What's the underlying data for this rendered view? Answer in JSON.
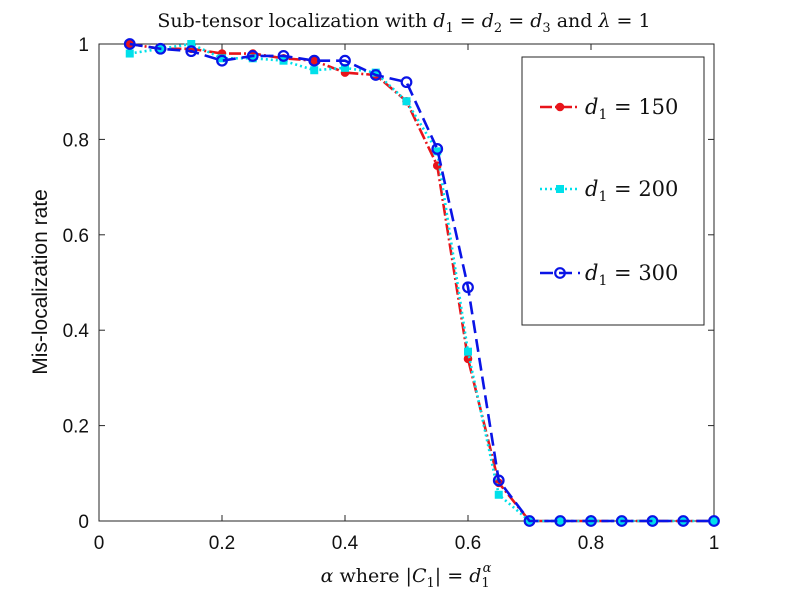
{
  "chart_data": {
    "type": "line",
    "title": "Sub-tensor localization with d1 = d2 = d3 and λ = 1",
    "title_parts": {
      "prefix": "Sub-tensor localization with ",
      "d": "d",
      "s1": "1",
      "s2": "2",
      "s3": "3",
      "eq": " = ",
      "and": " and ",
      "lambda": "λ",
      "one": " = 1"
    },
    "xlabel": "α where |C1| = d1^α",
    "xlabel_parts": {
      "alpha": "α",
      "where": " where |",
      "C": "C",
      "sub": "1",
      "eq": "| = ",
      "d": "d",
      "dsub": "1",
      "dsup": "α"
    },
    "ylabel": "Mis-localization rate",
    "xlim": [
      0,
      1
    ],
    "ylim": [
      0,
      1
    ],
    "xticks": [
      "0",
      "0.2",
      "0.4",
      "0.6",
      "0.8",
      "1"
    ],
    "xtick_values": [
      0,
      0.2,
      0.4,
      0.6,
      0.8,
      1
    ],
    "yticks": [
      "0",
      "0.2",
      "0.4",
      "0.6",
      "0.8",
      "1"
    ],
    "ytick_values": [
      0,
      0.2,
      0.4,
      0.6,
      0.8,
      1
    ],
    "legend_position": "top-right",
    "x": [
      0.05,
      0.1,
      0.15,
      0.2,
      0.25,
      0.3,
      0.35,
      0.4,
      0.45,
      0.5,
      0.55,
      0.6,
      0.65,
      0.7,
      0.75,
      0.8,
      0.85,
      0.9,
      0.95,
      1.0
    ],
    "series": [
      {
        "name": "d1 = 150",
        "label_var": "d",
        "label_sub": "1",
        "label_eq": " = 150",
        "color": "#e8141a",
        "dash": "12 3 2 3",
        "marker": "dot",
        "values": [
          1.0,
          0.99,
          0.99,
          0.98,
          0.98,
          0.97,
          0.965,
          0.94,
          0.935,
          0.88,
          0.745,
          0.34,
          0.08,
          0.0,
          0.0,
          0.0,
          0.0,
          0.0,
          0.0,
          0.0
        ]
      },
      {
        "name": "d1 = 200",
        "label_var": "d",
        "label_sub": "1",
        "label_eq": " = 200",
        "color": "#00e0ea",
        "dash": "2 3",
        "marker": "square",
        "values": [
          0.98,
          0.99,
          1.0,
          0.97,
          0.97,
          0.965,
          0.945,
          0.95,
          0.94,
          0.88,
          0.775,
          0.355,
          0.055,
          0.0,
          0.0,
          0.0,
          0.0,
          0.0,
          0.0,
          0.0
        ]
      },
      {
        "name": "d1 = 300",
        "label_var": "d",
        "label_sub": "1",
        "label_eq": " = 300",
        "color": "#0a14e6",
        "dash": "13 6",
        "marker": "circle",
        "values": [
          1.0,
          0.99,
          0.985,
          0.965,
          0.975,
          0.975,
          0.965,
          0.965,
          0.935,
          0.92,
          0.78,
          0.49,
          0.085,
          0.0,
          0.0,
          0.0,
          0.0,
          0.0,
          0.0,
          0.0
        ]
      }
    ]
  }
}
